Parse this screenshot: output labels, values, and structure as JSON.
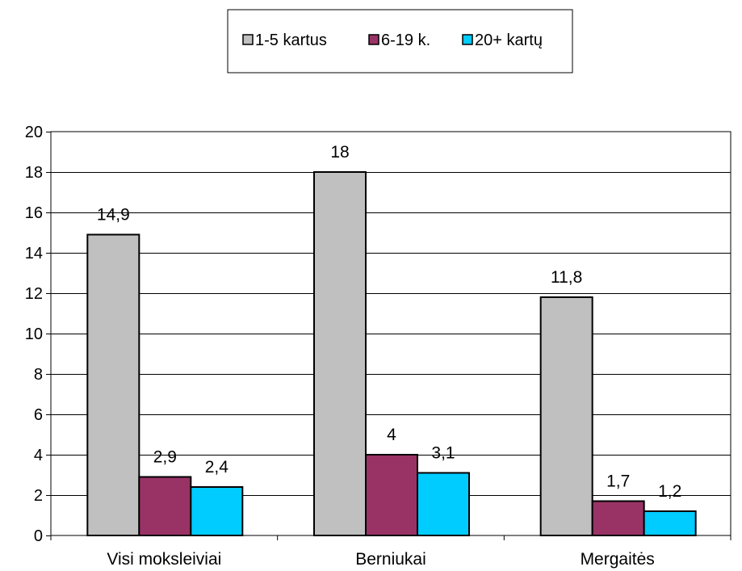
{
  "chart_data": {
    "type": "bar",
    "title": "",
    "xlabel": "",
    "ylabel": "",
    "categories": [
      "Visi moksleiviai",
      "Berniukai",
      "Mergaitės"
    ],
    "series": [
      {
        "name": "1-5 kartus",
        "color": "#c0c0c0",
        "values": [
          14.9,
          18,
          11.8
        ],
        "labels": [
          "14,9",
          "18",
          "11,8"
        ]
      },
      {
        "name": "6-19 k.",
        "color": "#993366",
        "values": [
          2.9,
          4,
          1.7
        ],
        "labels": [
          "2,9",
          "4",
          "1,7"
        ]
      },
      {
        "name": "20+ kartų",
        "color": "#00ccff",
        "values": [
          2.4,
          3.1,
          1.2
        ],
        "labels": [
          "2,4",
          "3,1",
          "1,2"
        ]
      }
    ],
    "ylim": [
      0,
      20
    ],
    "yticks": [
      0,
      2,
      4,
      6,
      8,
      10,
      12,
      14,
      16,
      18,
      20
    ],
    "grid": true,
    "legend": "top"
  }
}
